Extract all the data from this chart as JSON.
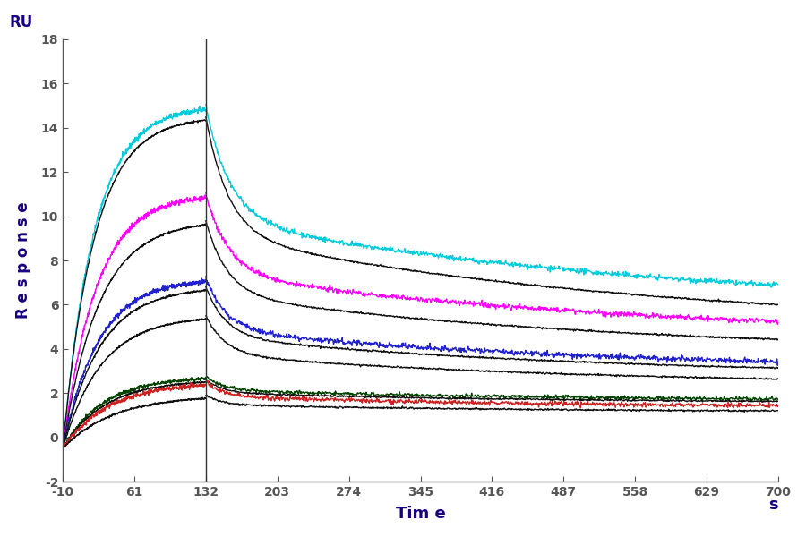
{
  "xlabel": "Tim e",
  "xlabel_unit": "s",
  "ylabel_letters": [
    "R",
    "e",
    "s",
    "p",
    "o",
    "n",
    "s",
    "e"
  ],
  "ylabel_top": "RU",
  "xlim": [
    -10,
    700
  ],
  "ylim": [
    -2,
    18
  ],
  "xticks": [
    -10,
    61,
    132,
    203,
    274,
    345,
    416,
    487,
    558,
    629,
    700
  ],
  "yticks": [
    -2,
    0,
    2,
    4,
    6,
    8,
    10,
    12,
    14,
    16,
    18
  ],
  "association_end": 132,
  "t_start": -10,
  "t_end": 700,
  "baseline_start": -0.5,
  "background_color": "#ffffff",
  "tick_color": "#1a1a2e",
  "label_color": "#1a0080",
  "curves": [
    {
      "color": "#00ccdd",
      "peak": 15.0,
      "plateau_end": 5.7,
      "k_on": 0.032,
      "k_off": 0.0028,
      "noise": 0.06
    },
    {
      "color": "#111111",
      "peak": 14.5,
      "plateau_end": 4.9,
      "k_on": 0.032,
      "k_off": 0.003,
      "noise": 0.02
    },
    {
      "color": "#ff00ff",
      "peak": 11.0,
      "plateau_end": 4.5,
      "k_on": 0.03,
      "k_off": 0.003,
      "noise": 0.06
    },
    {
      "color": "#111111",
      "peak": 9.8,
      "plateau_end": 3.8,
      "k_on": 0.028,
      "k_off": 0.0032,
      "noise": 0.02
    },
    {
      "color": "#2222cc",
      "peak": 7.2,
      "plateau_end": 3.0,
      "k_on": 0.028,
      "k_off": 0.0033,
      "noise": 0.06
    },
    {
      "color": "#111111",
      "peak": 6.8,
      "plateau_end": 2.75,
      "k_on": 0.027,
      "k_off": 0.0034,
      "noise": 0.02
    },
    {
      "color": "#111111",
      "peak": 5.5,
      "plateau_end": 2.35,
      "k_on": 0.026,
      "k_off": 0.0035,
      "noise": 0.02
    },
    {
      "color": "#004400",
      "peak": 2.75,
      "plateau_end": 1.65,
      "k_on": 0.025,
      "k_off": 0.0038,
      "noise": 0.04
    },
    {
      "color": "#111111",
      "peak": 2.6,
      "plateau_end": 1.55,
      "k_on": 0.024,
      "k_off": 0.0039,
      "noise": 0.02
    },
    {
      "color": "#cc2222",
      "peak": 2.5,
      "plateau_end": 1.35,
      "k_on": 0.022,
      "k_off": 0.004,
      "noise": 0.05
    },
    {
      "color": "#111111",
      "peak": 1.9,
      "plateau_end": 1.15,
      "k_on": 0.02,
      "k_off": 0.0042,
      "noise": 0.02
    }
  ]
}
